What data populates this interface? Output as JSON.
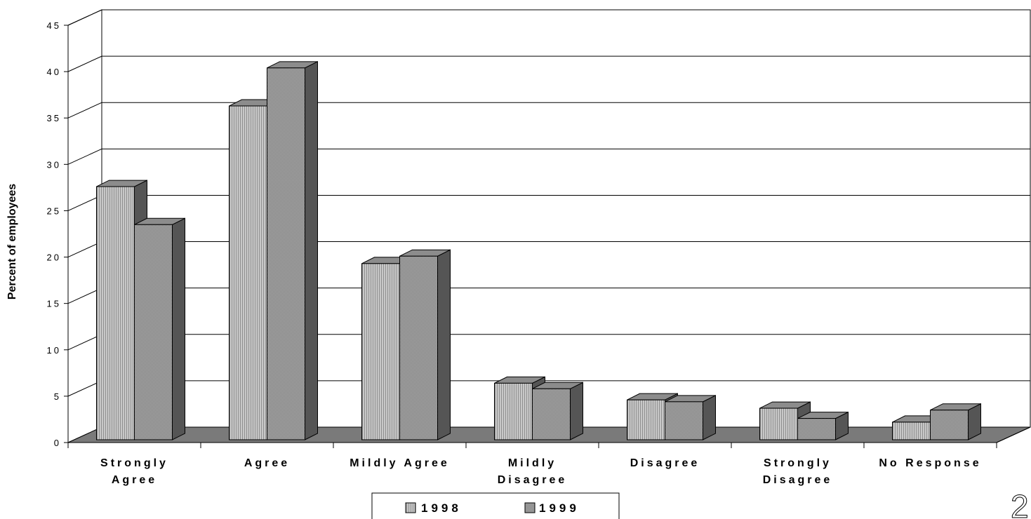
{
  "chart_data": {
    "type": "bar",
    "ylabel": "Percent of employees",
    "xlabel": "",
    "ylim": [
      0,
      45
    ],
    "y_ticks": [
      "0",
      "5",
      "10",
      "15",
      "20",
      "25",
      "30",
      "35",
      "40",
      "45"
    ],
    "categories": [
      [
        "Strongly",
        "Agree"
      ],
      [
        "Agree"
      ],
      [
        "Mildly Agree"
      ],
      [
        "Mildly",
        "Disagree"
      ],
      [
        "Disagree"
      ],
      [
        "Strongly",
        "Disagree"
      ],
      [
        "No Response"
      ]
    ],
    "series": [
      {
        "name": "1998",
        "values": [
          27.6,
          36.3,
          19.3,
          6.4,
          4.6,
          3.7,
          2.2
        ]
      },
      {
        "name": "1999",
        "values": [
          23.5,
          40.4,
          20.1,
          5.8,
          4.4,
          2.6,
          3.5
        ]
      }
    ],
    "grid": true,
    "legend_position": "bottom-center",
    "three_d": true
  },
  "colors": {
    "series_1998": "#b0b0b0",
    "series_1999": "#9e9e9e",
    "floor": "#7a7a7a",
    "side": "#555555",
    "top": "#8c8c8c",
    "grid": "#000000"
  },
  "corner_mark": "2"
}
